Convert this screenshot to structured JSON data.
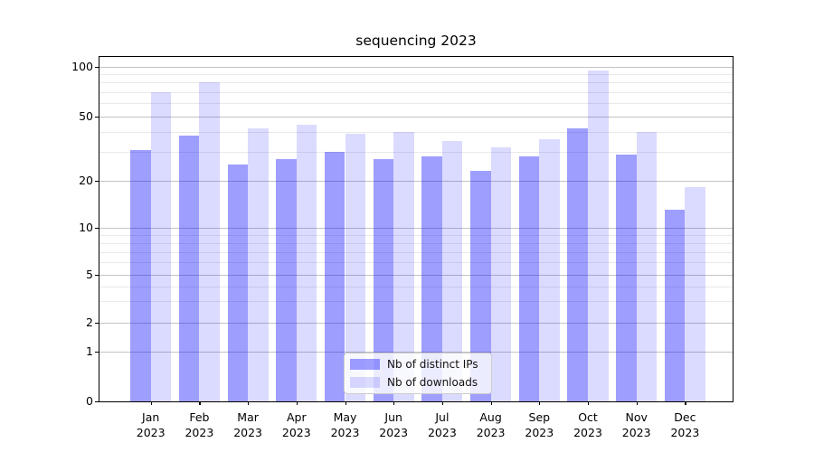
{
  "chart_data": {
    "type": "bar",
    "title": "sequencing 2023",
    "categories": [
      "Jan",
      "Feb",
      "Mar",
      "Apr",
      "May",
      "Jun",
      "Jul",
      "Aug",
      "Sep",
      "Oct",
      "Nov",
      "Dec"
    ],
    "x_tick_year": "2023",
    "series": [
      {
        "name": "Nb of distinct IPs",
        "color": "rgba(0,0,255,0.38)",
        "values": [
          31,
          38,
          25,
          27,
          30,
          27,
          28,
          23,
          28,
          42,
          29,
          13
        ]
      },
      {
        "name": "Nb of downloads",
        "color": "rgba(0,0,255,0.14)",
        "values": [
          70,
          80,
          42,
          44,
          39,
          40,
          35,
          32,
          36,
          95,
          40,
          18
        ]
      }
    ],
    "yscale": "symlog",
    "ylim": [
      0,
      120
    ],
    "y_ticks": [
      100,
      50,
      20,
      10,
      5,
      2,
      1,
      0
    ],
    "y_minor_ticks": [
      90,
      80,
      70,
      60,
      40,
      30,
      9,
      8,
      7,
      6,
      4,
      3
    ],
    "grid": true,
    "legend_position": "lower center",
    "colors": {
      "bar_dark": "#9f9ff5",
      "bar_light": "#dcdcfa",
      "grid_major": "#c3c3c3",
      "grid_minor": "#e9e9e9",
      "axis": "#000000"
    }
  }
}
